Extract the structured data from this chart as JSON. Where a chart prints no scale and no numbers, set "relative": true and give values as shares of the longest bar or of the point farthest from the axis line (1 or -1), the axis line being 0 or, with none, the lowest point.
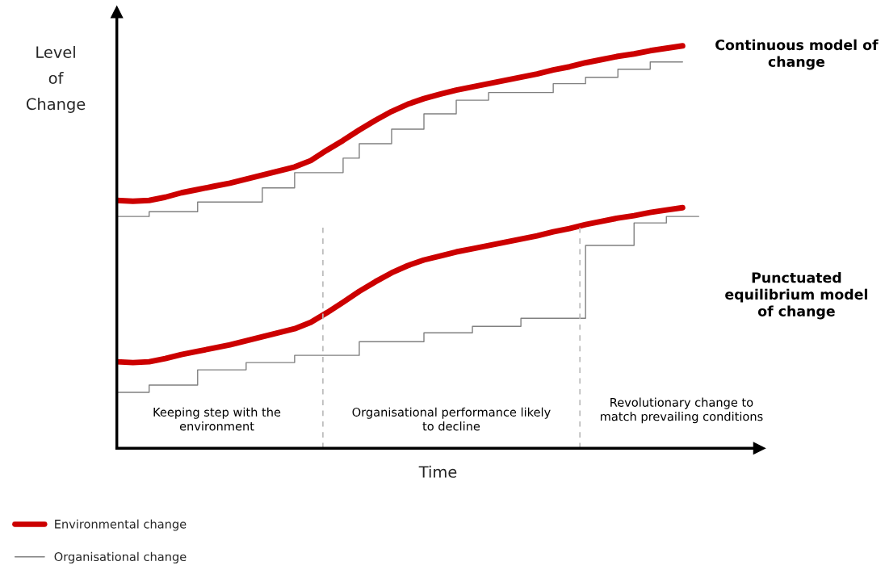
{
  "chart_data": {
    "type": "line",
    "relative": true,
    "xlabel": "Time",
    "ylabel": "Level\nof\nChange",
    "legend": "bottom",
    "categories": [
      null,
      null,
      null,
      null,
      null,
      null,
      null,
      null,
      null,
      null,
      null,
      null,
      null,
      null,
      null,
      null,
      null,
      null,
      null,
      null,
      null,
      null,
      null,
      null,
      null,
      null,
      null,
      null,
      null,
      null,
      null,
      null,
      null,
      null,
      null,
      null,
      null
    ],
    "series": [
      {
        "name": "Environmental change",
        "color": "#cc0000",
        "values": [
          0.616,
          0.614,
          0.616,
          0.624,
          0.635,
          0.643,
          0.651,
          0.659,
          0.669,
          0.679,
          0.689,
          0.699,
          0.715,
          0.741,
          0.765,
          0.791,
          0.815,
          0.837,
          0.855,
          0.869,
          0.88,
          0.89,
          0.898,
          0.906,
          0.914,
          0.922,
          0.93,
          0.94,
          0.948,
          0.958,
          0.966,
          0.974,
          0.98,
          0.988,
          0.994,
          1.0,
          null
        ]
      },
      {
        "name": "Organisational change",
        "type": "step",
        "color": "#808080",
        "values": [
          0.576,
          0.576,
          0.588,
          0.588,
          0.588,
          0.612,
          0.612,
          0.612,
          0.612,
          0.647,
          0.647,
          0.685,
          0.685,
          0.685,
          0.721,
          0.757,
          0.757,
          0.793,
          0.793,
          0.831,
          0.831,
          0.865,
          0.865,
          0.884,
          0.884,
          0.884,
          0.884,
          0.906,
          0.906,
          0.922,
          0.922,
          0.942,
          0.942,
          0.96,
          0.96,
          0.96,
          null
        ]
      },
      {
        "color": "#cc0000",
        "values": [
          0.215,
          0.213,
          0.215,
          0.223,
          0.233,
          0.241,
          0.249,
          0.257,
          0.267,
          0.277,
          0.287,
          0.297,
          0.313,
          0.337,
          0.363,
          0.39,
          0.414,
          0.436,
          0.454,
          0.468,
          0.478,
          0.488,
          0.496,
          0.504,
          0.512,
          0.52,
          0.528,
          0.538,
          0.546,
          0.556,
          0.564,
          0.572,
          0.578,
          0.586,
          0.592,
          0.598,
          null
        ]
      },
      {
        "type": "step",
        "color": "#808080",
        "values": [
          0.139,
          0.139,
          0.157,
          0.157,
          0.157,
          0.195,
          0.195,
          0.195,
          0.213,
          0.213,
          0.213,
          0.231,
          0.231,
          0.231,
          0.231,
          0.265,
          0.265,
          0.265,
          0.265,
          0.287,
          0.287,
          0.287,
          0.303,
          0.303,
          0.303,
          0.323,
          0.323,
          0.323,
          0.323,
          0.504,
          0.504,
          0.504,
          0.56,
          0.56,
          0.576,
          0.576,
          0.576
        ]
      }
    ],
    "annotations": [
      "Continuous model of\nchange",
      "Punctuated\nequilibrium model\nof change",
      "Keeping step with the\nenvironment",
      "Organisational performance likely\nto decline",
      "Revolutionary change to\nmatch prevailing conditions"
    ]
  }
}
